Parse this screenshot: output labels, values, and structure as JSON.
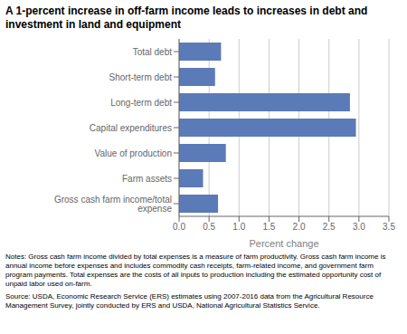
{
  "chart_data": {
    "type": "bar",
    "orientation": "horizontal",
    "title": "A 1-percent increase in off-farm income leads to increases in debt and investment in land and equipment",
    "x_label": "Percent change",
    "categories": [
      "Gross cash farm income/total expense",
      "Farm assets",
      "Value of production",
      "Capital expenditures",
      "Long-term debt",
      "Short-term debt",
      "Total debt"
    ],
    "values": [
      0.65,
      0.4,
      0.78,
      2.95,
      2.85,
      0.6,
      0.7
    ],
    "color": "#5B7AB8",
    "xlim": [
      0,
      3.5
    ],
    "xticks": [
      {
        "value": 0.0,
        "label": "0.0"
      },
      0.5,
      {
        "value": 1.0,
        "label": "1.0"
      },
      1.5,
      {
        "value": 2.0,
        "label": "2.0"
      },
      2.5,
      {
        "value": 3.0,
        "label": "3.0"
      },
      3.5
    ],
    "grid": true,
    "annotations": [
      "Notes: Gross cash farm income divided by total expenses is a measure of farm productivity. Gross cash farm income is annual income before expenses and includes commodity cash receipts, farm-related income, and government farm program payments. Total expenses are the costs of all inputs to production including the estimated opportunity cost of unpaid labor used on-farm.",
      "Source: USDA, Economic Research Service (ERS) estimates using 2007-2016 data from the Agricultural Resource Management Survey, jointly conducted by ERS and USDA, National Agricultural Statistics Service."
    ]
  }
}
